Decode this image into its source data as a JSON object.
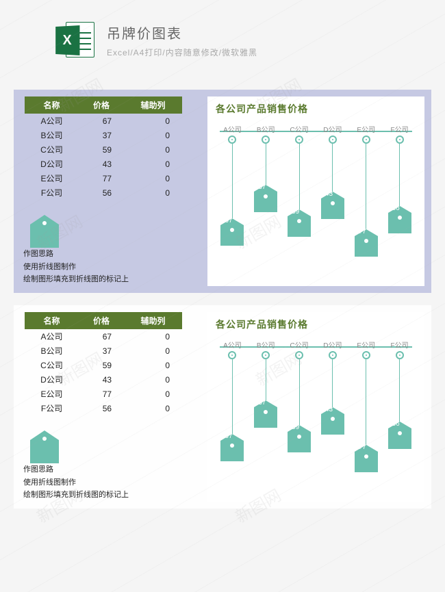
{
  "watermark_text": "新图网",
  "header": {
    "icon_letter": "X",
    "title": "吊牌价图表",
    "subtitle": "Excel/A4打印/内容随意修改/微软雅黑"
  },
  "table": {
    "headers": [
      "名称",
      "价格",
      "辅助列"
    ],
    "rows": [
      {
        "name": "A公司",
        "price": 67,
        "aux": 0
      },
      {
        "name": "B公司",
        "price": 37,
        "aux": 0
      },
      {
        "name": "C公司",
        "price": 59,
        "aux": 0
      },
      {
        "name": "D公司",
        "price": 43,
        "aux": 0
      },
      {
        "name": "E公司",
        "price": 77,
        "aux": 0
      },
      {
        "name": "F公司",
        "price": 56,
        "aux": 0
      }
    ],
    "header_bg": "#5a7a2e",
    "header_fg": "#ffffff"
  },
  "notes": {
    "l1": "作图思路",
    "l2": "使用折线图制作",
    "l3": "绘制图形填充到折线图的标记上"
  },
  "chart": {
    "title": "各公司产品销售价格",
    "type": "hanging-tag",
    "categories": [
      "A公司",
      "B公司",
      "C公司",
      "D公司",
      "E公司",
      "F公司"
    ],
    "values": [
      67,
      37,
      59,
      43,
      77,
      56
    ],
    "ymax": 80,
    "accent": "#6bbfae",
    "label_color": "#888888",
    "title_color": "#5a7a2e",
    "bg": "#ffffff",
    "tag_fg": "#ffffff"
  },
  "panels": {
    "purple_bg": "#c6c9e3",
    "white_bg": "#fefefe"
  },
  "sample_tag_color": "#6bbfae"
}
